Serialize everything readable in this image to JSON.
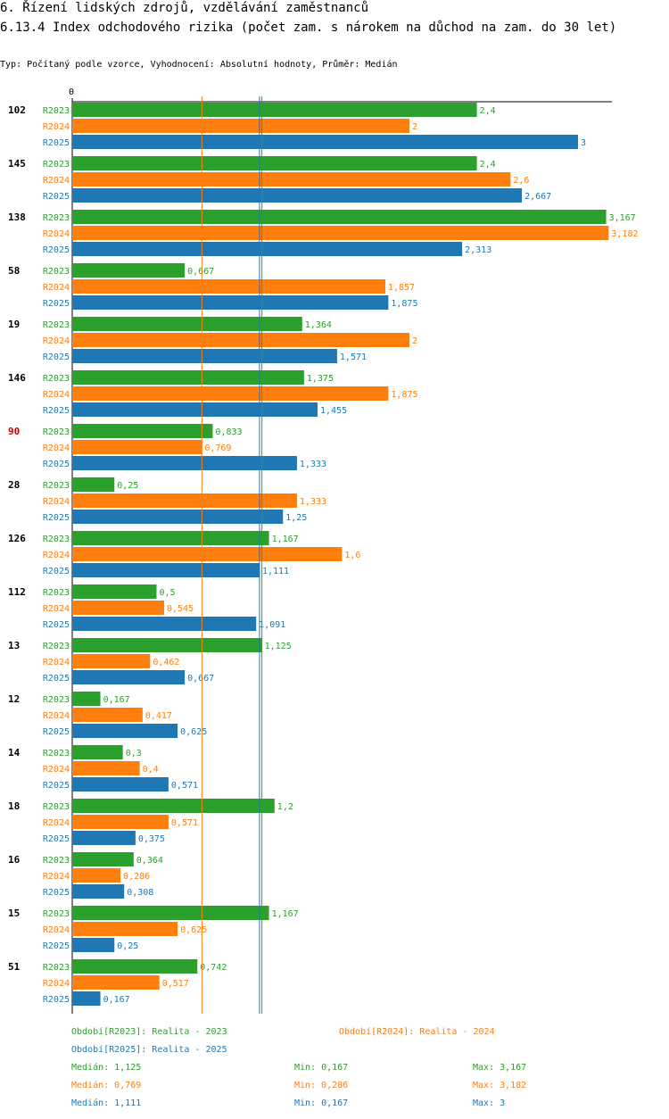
{
  "header": {
    "section": "6. Řízení lidských zdrojů, vzdělávání zaměstnanců",
    "title": "6.13.4 Index odchodového rizika (počet zam. s nárokem na důchod na zam. do 30 let)",
    "subtitle": "Typ: Počítaný podle vzorce, Vyhodnocení: Absolutní hodnoty, Průměr: Medián"
  },
  "colors": {
    "R2023": "#2ca02c",
    "R2024": "#ff7f0e",
    "R2025": "#1f77b4",
    "highlight": "#cc0000"
  },
  "chart_data": {
    "type": "bar",
    "orientation": "horizontal",
    "axis_zero_label": "0",
    "xlim": [
      0,
      3.3
    ],
    "categories": [
      "102",
      "145",
      "138",
      "58",
      "19",
      "146",
      "90",
      "28",
      "126",
      "112",
      "13",
      "12",
      "14",
      "18",
      "16",
      "15",
      "51"
    ],
    "highlighted_category": "90",
    "series": [
      {
        "name": "R2023",
        "values": [
          2.4,
          2.4,
          3.167,
          0.667,
          1.364,
          1.375,
          0.833,
          0.25,
          1.167,
          0.5,
          1.125,
          0.167,
          0.3,
          1.2,
          0.364,
          1.167,
          0.742
        ],
        "labels": [
          "2,4",
          "2,4",
          "3,167",
          "0,667",
          "1,364",
          "1,375",
          "0,833",
          "0,25",
          "1,167",
          "0,5",
          "1,125",
          "0,167",
          "0,3",
          "1,2",
          "0,364",
          "1,167",
          "0,742"
        ]
      },
      {
        "name": "R2024",
        "values": [
          2,
          2.6,
          3.182,
          1.857,
          2,
          1.875,
          0.769,
          1.333,
          1.6,
          0.545,
          0.462,
          0.417,
          0.4,
          0.571,
          0.286,
          0.625,
          0.517
        ],
        "labels": [
          "2",
          "2,6",
          "3,182",
          "1,857",
          "2",
          "1,875",
          "0,769",
          "1,333",
          "1,6",
          "0,545",
          "0,462",
          "0,417",
          "0,4",
          "0,571",
          "0,286",
          "0,625",
          "0,517"
        ]
      },
      {
        "name": "R2025",
        "values": [
          3,
          2.667,
          2.313,
          1.875,
          1.571,
          1.455,
          1.333,
          1.25,
          1.111,
          1.091,
          0.667,
          0.625,
          0.571,
          0.375,
          0.308,
          0.25,
          0.167
        ],
        "labels": [
          "3",
          "2,667",
          "2,313",
          "1,875",
          "1,571",
          "1,455",
          "1,333",
          "1,25",
          "1,111",
          "1,091",
          "0,667",
          "0,625",
          "0,571",
          "0,375",
          "0,308",
          "0,25",
          "0,167"
        ]
      }
    ],
    "medians": [
      {
        "series": "R2023",
        "value": 1.125
      },
      {
        "series": "R2024",
        "value": 0.769
      },
      {
        "series": "R2025",
        "value": 1.111
      }
    ]
  },
  "legend": {
    "r2023": "Období[R2023]: Realita - 2023",
    "r2024": "Období[R2024]: Realita - 2024",
    "r2025": "Období[R2025]: Realita - 2025"
  },
  "stats": [
    {
      "median": "Medián: 1,125",
      "min": "Min: 0,167",
      "max": "Max: 3,167"
    },
    {
      "median": "Medián: 0,769",
      "min": "Min: 0,286",
      "max": "Max: 3,182"
    },
    {
      "median": "Medián: 1,111",
      "min": "Min: 0,167",
      "max": "Max: 3"
    }
  ]
}
